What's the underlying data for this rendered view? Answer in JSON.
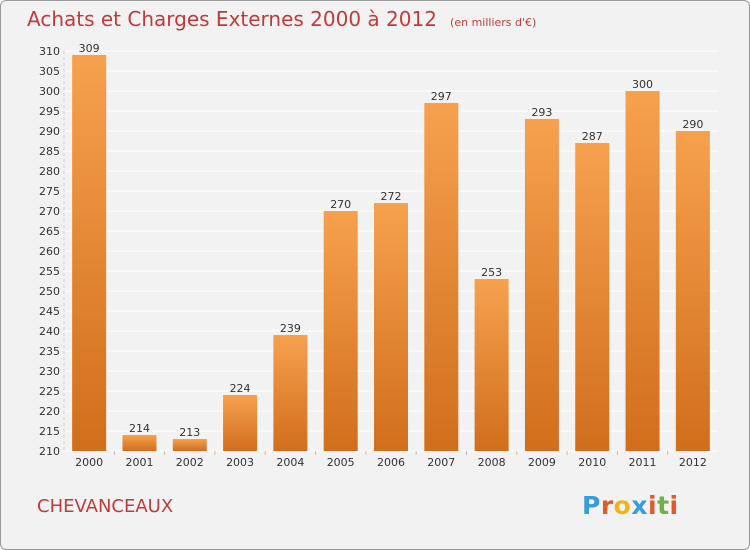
{
  "header": {
    "title": "Achats et Charges Externes 2000 à 2012",
    "unit": "(en milliers d'€)"
  },
  "footer": {
    "place": "CHEVANCEAUX",
    "brand": "Proxiti",
    "brand_colors": [
      "#3a9bd9",
      "#e05a2c",
      "#f0b41e",
      "#3a9bd9",
      "#e05a2c",
      "#6cb33f",
      "#e05a2c"
    ]
  },
  "colors": {
    "title": "#c03c3c",
    "bar_top": "#f6a14e",
    "bar_bottom": "#d16e1c",
    "grid": "#ffffff",
    "background": "#f2f2f2"
  },
  "chart_data": {
    "type": "bar",
    "categories": [
      "2000",
      "2001",
      "2002",
      "2003",
      "2004",
      "2005",
      "2006",
      "2007",
      "2008",
      "2009",
      "2010",
      "2011",
      "2012"
    ],
    "values": [
      309,
      214,
      213,
      224,
      239,
      270,
      272,
      297,
      253,
      293,
      287,
      300,
      290
    ],
    "ylim": [
      210,
      310
    ],
    "ytick_step": 5,
    "grid": true,
    "xlabel": "",
    "ylabel": ""
  }
}
